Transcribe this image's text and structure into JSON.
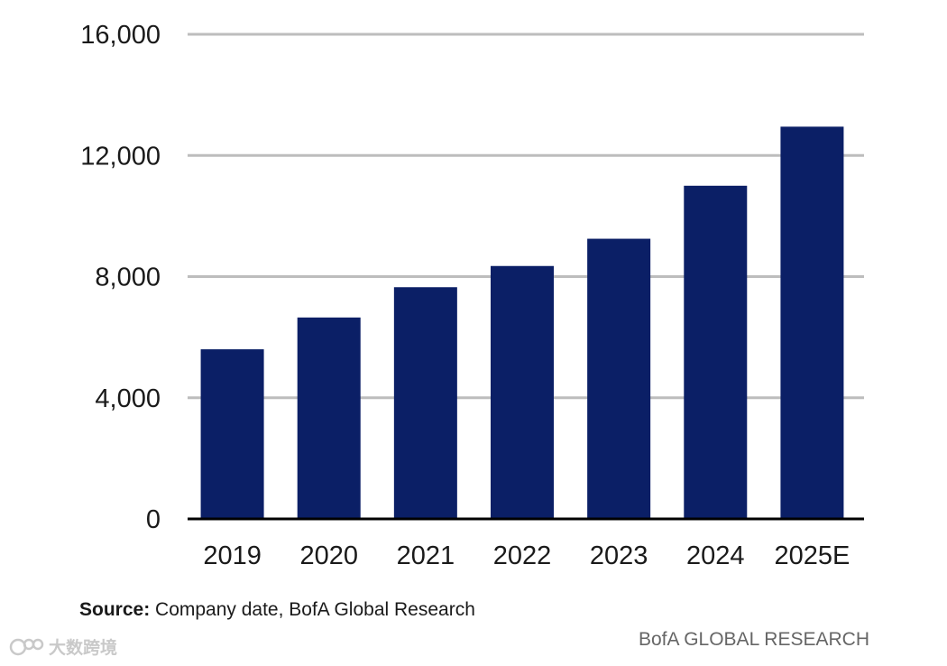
{
  "chart_data": {
    "type": "bar",
    "categories": [
      "2019",
      "2020",
      "2021",
      "2022",
      "2023",
      "2024",
      "2025E"
    ],
    "values": [
      5600,
      6650,
      7650,
      8350,
      9250,
      11000,
      12950
    ],
    "ylim": [
      0,
      16000
    ],
    "yticks": [
      0,
      4000,
      8000,
      12000,
      16000
    ],
    "ytick_labels": [
      "0",
      "4,000",
      "8,000",
      "12,000",
      "16,000"
    ],
    "grid": true,
    "bar_color": "#0b1f66",
    "grid_color": "#bdbdbd",
    "title": "",
    "xlabel": "",
    "ylabel": ""
  },
  "footer": {
    "source_label": "Source:",
    "source_text": " Company date, BofA Global Research",
    "brand": "BofA GLOBAL RESEARCH",
    "watermark": "大数跨境"
  }
}
